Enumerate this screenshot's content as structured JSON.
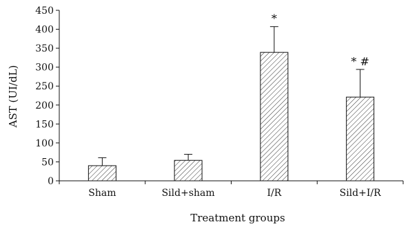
{
  "chart_data": {
    "type": "bar",
    "categories": [
      "Sham",
      "Sild+sham",
      "I/R",
      "Sild+I/R"
    ],
    "values": [
      40,
      54,
      339,
      221
    ],
    "errors": [
      21,
      16,
      68,
      73
    ],
    "markers": [
      "",
      "",
      "*",
      "* #"
    ],
    "xlabel": "Treatment groups",
    "ylabel": "AST (UI/dL)",
    "ylim": [
      0,
      450
    ],
    "yticks": [
      0,
      50,
      100,
      150,
      200,
      250,
      300,
      350,
      400,
      450
    ],
    "bar_fill": "diagonal-hatch",
    "grid": false,
    "legend": "none",
    "colors": {
      "axis": "#111111",
      "bar_stroke": "#111111",
      "hatch": "#333333",
      "background": "#ffffff"
    }
  }
}
